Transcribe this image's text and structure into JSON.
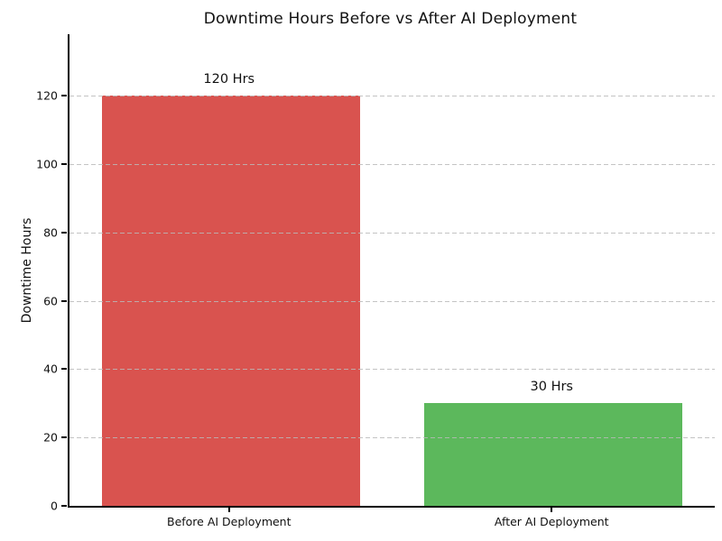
{
  "chart_data": {
    "type": "bar",
    "title": "Downtime Hours Before vs After AI Deployment",
    "categories": [
      "Before AI Deployment",
      "After AI Deployment"
    ],
    "values": [
      120,
      30
    ],
    "value_labels": [
      "120 Hrs",
      "30 Hrs"
    ],
    "bar_colors": [
      "#d9534f",
      "#5cb85c"
    ],
    "xlabel": "",
    "ylabel": "Downtime Hours",
    "ylim": [
      0,
      138
    ],
    "yticks": [
      0,
      20,
      40,
      60,
      80,
      100,
      120
    ],
    "bar_width_fraction": 0.8,
    "grid": "horizontal-dashed",
    "grid_color": "#bbbbbb",
    "legend": "none",
    "axis_color": "#000000",
    "background_color": "#ffffff",
    "title_color": "#111111"
  }
}
